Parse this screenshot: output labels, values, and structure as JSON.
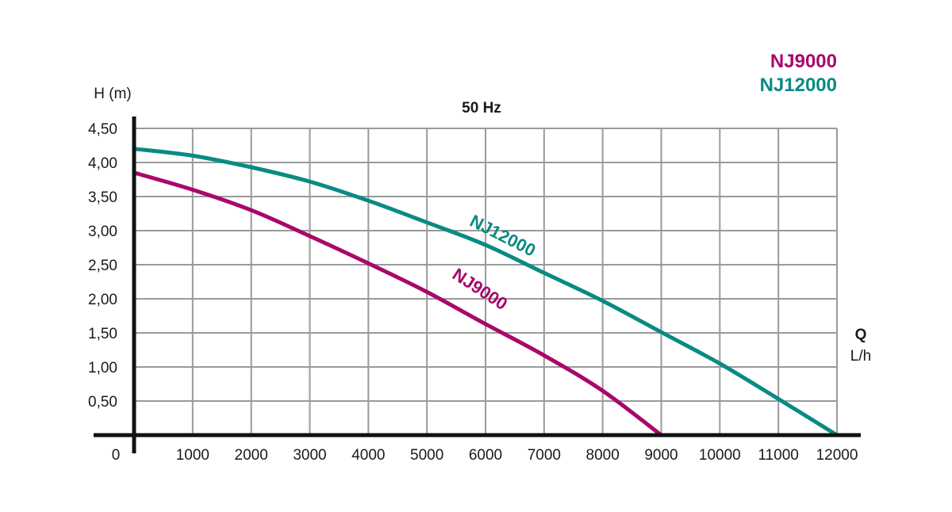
{
  "chart_data": {
    "type": "line",
    "title": "50 Hz",
    "ylabel": "H (m)",
    "xlabel_main": "Q",
    "xlabel_unit": "L/h",
    "origin_label": "0",
    "xlim": [
      0,
      12000
    ],
    "ylim": [
      0,
      4.5
    ],
    "grid": true,
    "legend_placement": "top-right",
    "x_ticks": [
      1000,
      2000,
      3000,
      4000,
      5000,
      6000,
      7000,
      8000,
      9000,
      10000,
      11000,
      12000
    ],
    "x_tick_labels": [
      "1000",
      "2000",
      "3000",
      "4000",
      "5000",
      "6000",
      "7000",
      "8000",
      "9000",
      "10000",
      "11000",
      "12000"
    ],
    "y_ticks": [
      0.5,
      1,
      1.5,
      2,
      2.5,
      3,
      3.5,
      4,
      4.5
    ],
    "y_tick_labels": [
      "0,50",
      "1,00",
      "1,50",
      "2,00",
      "2,50",
      "3,00",
      "3,50",
      "4,00",
      "4,50"
    ],
    "series": [
      {
        "name": "NJ9000",
        "color": "#a8086b",
        "x": [
          0,
          1000,
          2000,
          3000,
          4000,
          5000,
          6000,
          7000,
          8000,
          9000
        ],
        "y": [
          3.85,
          3.6,
          3.3,
          2.92,
          2.52,
          2.1,
          1.63,
          1.17,
          0.65,
          0
        ]
      },
      {
        "name": "NJ12000",
        "color": "#0a8a84",
        "x": [
          0,
          1000,
          2000,
          3000,
          4000,
          5000,
          6000,
          7000,
          8000,
          9000,
          10000,
          11000,
          12000
        ],
        "y": [
          4.2,
          4.1,
          3.93,
          3.72,
          3.44,
          3.12,
          2.79,
          2.38,
          1.97,
          1.51,
          1.05,
          0.53,
          0
        ]
      }
    ],
    "annotations": [
      {
        "text": "NJ12000",
        "series": 1,
        "at_x": 6250,
        "at_y": 2.85,
        "angle": 27
      },
      {
        "text": "NJ9000",
        "series": 0,
        "at_x": 5850,
        "at_y": 2.07,
        "angle": 33
      }
    ]
  }
}
